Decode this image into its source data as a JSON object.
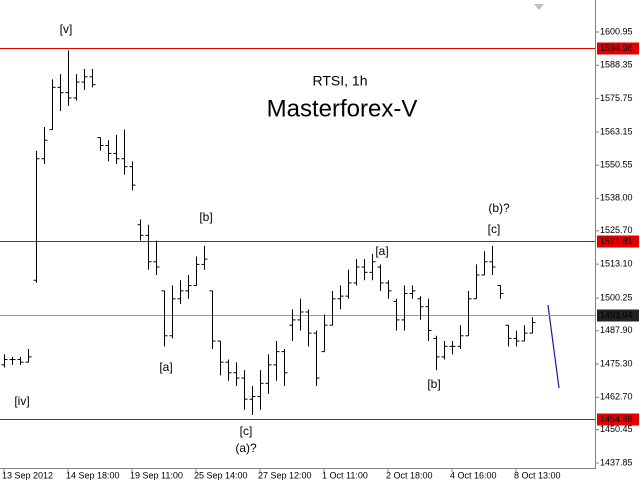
{
  "chart_data": {
    "type": "ohlc",
    "title": "RTSI, 1h",
    "subtitle": "Masterforex-V",
    "subtitle_color": "#e00000",
    "categories": [
      "13 Sep 2012",
      null,
      null,
      null,
      null,
      null,
      null,
      null,
      "14 Sep 18:00",
      null,
      null,
      null,
      null,
      null,
      null,
      null,
      "19 Sep 11:00",
      null,
      null,
      null,
      null,
      null,
      null,
      null,
      "25 Sep 14:00",
      null,
      null,
      null,
      null,
      null,
      null,
      null,
      "27 Sep 12:00",
      null,
      null,
      null,
      null,
      null,
      null,
      null,
      "1 Oct 11:00",
      null,
      null,
      null,
      null,
      null,
      null,
      null,
      "2 Oct 18:00",
      null,
      null,
      null,
      null,
      null,
      null,
      null,
      "4 Oct 16:00",
      null,
      null,
      null,
      null,
      null,
      null,
      null,
      "8 Oct 13:00",
      null,
      null
    ],
    "open": [
      1475,
      1477,
      1477,
      1476,
      1507,
      1553,
      1564,
      1580,
      1578,
      1576,
      1582,
      1584,
      1561,
      1558,
      1555,
      1553,
      1550,
      1528,
      1524,
      1514,
      1503,
      1486,
      1500,
      1503,
      1505,
      1513,
      1503,
      1484,
      1476,
      1472,
      1470,
      1462,
      1463,
      1468,
      1475,
      1480,
      1490,
      1492,
      1495,
      1487,
      1480,
      1490,
      1500,
      1501,
      1506,
      1512,
      1510,
      1512,
      1506,
      1499,
      1492,
      1502,
      1500,
      1497,
      1485,
      1478,
      1482,
      1482,
      1486,
      1500,
      1509,
      1514,
      1505,
      1490,
      1485,
      1484,
      1487
    ],
    "high": [
      1479,
      1478,
      1478,
      1481,
      1556,
      1565,
      1583,
      1585,
      1594,
      1585,
      1587,
      1587,
      1561,
      1560,
      1562,
      1564,
      1552,
      1530,
      1528,
      1522,
      1503,
      1505,
      1507,
      1509,
      1516,
      1520,
      1503,
      1484,
      1477,
      1476,
      1473,
      1467,
      1473,
      1479,
      1484,
      1481,
      1496,
      1500,
      1496,
      1488,
      1494,
      1503,
      1505,
      1511,
      1515,
      1515,
      1517,
      1513,
      1507,
      1500,
      1505,
      1505,
      1501,
      1500,
      1486,
      1484,
      1484,
      1490,
      1503,
      1513,
      1518,
      1520,
      1505,
      1490,
      1488,
      1490,
      1493
    ],
    "low": [
      1474,
      1475,
      1475,
      1476,
      1506,
      1551,
      1564,
      1571,
      1573,
      1575,
      1579,
      1580,
      1556,
      1552,
      1551,
      1547,
      1541,
      1522,
      1511,
      1509,
      1482,
      1485,
      1498,
      1500,
      1505,
      1511,
      1481,
      1471,
      1469,
      1467,
      1458,
      1456,
      1458,
      1464,
      1469,
      1467,
      1484,
      1488,
      1482,
      1467,
      1480,
      1490,
      1496,
      1500,
      1505,
      1507,
      1507,
      1503,
      1500,
      1488,
      1488,
      1500,
      1492,
      1484,
      1473,
      1477,
      1479,
      1481,
      1486,
      1500,
      1509,
      1509,
      1500,
      1482,
      1482,
      1484,
      1487
    ],
    "close": [
      1477,
      1477,
      1476,
      1478,
      1553,
      1560,
      1580,
      1578,
      1576,
      1582,
      1584,
      1581,
      1558,
      1555,
      1553,
      1550,
      1543,
      1524,
      1514,
      1512,
      1486,
      1500,
      1503,
      1505,
      1513,
      1515,
      1484,
      1476,
      1472,
      1470,
      1462,
      1463,
      1468,
      1475,
      1480,
      1472,
      1492,
      1495,
      1487,
      1470,
      1490,
      1500,
      1501,
      1506,
      1512,
      1510,
      1514,
      1506,
      1503,
      1492,
      1502,
      1503,
      1497,
      1488,
      1478,
      1482,
      1482,
      1486,
      1500,
      1509,
      1514,
      1512,
      1502,
      1485,
      1484,
      1487,
      1491
    ],
    "bar_color": "#000000",
    "ylim": [
      1435.96,
      1613.06
    ],
    "yticks": [
      {
        "value": 1437.85,
        "label": "1437.85"
      },
      1450.45,
      {
        "value": 1462.7,
        "label": "1462.70"
      },
      {
        "value": 1475.3,
        "label": "1475.30"
      },
      {
        "value": 1487.9,
        "label": "1487.90"
      },
      1500.25,
      {
        "value": 1513.1,
        "label": "1513.10"
      },
      {
        "value": 1525.7,
        "label": "1525.70"
      },
      {
        "value": 1538,
        "label": "1538.00"
      },
      1550.55,
      {
        "value": 1563.15,
        "label": "1563.15"
      },
      1575.75,
      1588.35,
      1600.95
    ],
    "levels": [
      {
        "value": 1594.98,
        "color": "#e00000"
      },
      {
        "value": 1521.81,
        "color": "#e00000"
      },
      {
        "value": 1454.69,
        "color": "#e00000"
      },
      {
        "value": 1493.94,
        "color": "#999999"
      }
    ],
    "annotations": [
      "[v]",
      "[iv]",
      "[a]",
      "[b]",
      "[c]",
      "(a)?",
      "[a]",
      "[b]",
      "[c]",
      "(b)?"
    ]
  }
}
